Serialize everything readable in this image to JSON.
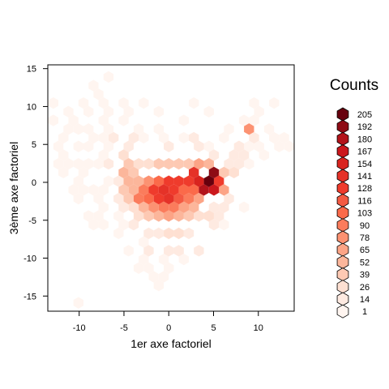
{
  "chart_data": {
    "type": "heatmap",
    "subtype": "hexbin",
    "title": "",
    "xlabel": "1er axe factoriel",
    "ylabel": "3ème axe factoriel",
    "xlim": [
      -13.5,
      14
    ],
    "ylim": [
      -17,
      15.5
    ],
    "x_ticks": [
      -10,
      -5,
      0,
      5,
      10
    ],
    "y_ticks": [
      -15,
      -10,
      -5,
      0,
      5,
      10,
      15
    ],
    "x_tick_labels": [
      "-10",
      "-5",
      "0",
      "5",
      "10"
    ],
    "y_tick_labels": [
      "-15",
      "-10",
      "-5",
      "0",
      "5",
      "10",
      "15"
    ],
    "grid": false,
    "legend": {
      "title": "Counts",
      "placement": "right",
      "entries": [
        "205",
        "192",
        "180",
        "167",
        "154",
        "141",
        "128",
        "116",
        "103",
        "90",
        "78",
        "65",
        "52",
        "39",
        "26",
        "14",
        "1"
      ],
      "colors": [
        "#67000d",
        "#8e0c15",
        "#b3141b",
        "#cb181d",
        "#d9241f",
        "#e53228",
        "#ef3b2c",
        "#f45a42",
        "#fb6a4a",
        "#fb7c5c",
        "#fc9272",
        "#fca486",
        "#fcb69b",
        "#fdc9b3",
        "#fee0d2",
        "#feeae1",
        "#fff5f0"
      ]
    },
    "hex_dx": 1.12,
    "x_origin": -12.32,
    "y_origin": -15.9,
    "cells": [
      [
        -12.5,
        2.0,
        2
      ],
      [
        -12.5,
        5.0,
        2
      ],
      [
        -12.5,
        8.0,
        2
      ],
      [
        -12.5,
        10.5,
        3
      ],
      [
        -11.5,
        4.0,
        3
      ],
      [
        -11.5,
        6.0,
        2
      ],
      [
        -11.5,
        9.0,
        3
      ],
      [
        -11.5,
        1.0,
        2
      ],
      [
        -11,
        3.0,
        4
      ],
      [
        -11,
        7.0,
        3
      ],
      [
        -11,
        -1.0,
        2
      ],
      [
        -10.5,
        5.0,
        4
      ],
      [
        -10.5,
        8.5,
        3
      ],
      [
        -10.5,
        0.5,
        3
      ],
      [
        -10,
        2.5,
        5
      ],
      [
        -10,
        6.5,
        4
      ],
      [
        -10,
        -2.5,
        3
      ],
      [
        -9.5,
        4.5,
        5
      ],
      [
        -9.5,
        10.0,
        3
      ],
      [
        -9.5,
        -4.0,
        2
      ],
      [
        -9,
        1.0,
        6
      ],
      [
        -9,
        7.5,
        5
      ],
      [
        -9,
        -1.5,
        4
      ],
      [
        -8.5,
        3.0,
        7
      ],
      [
        -8.5,
        5.5,
        6
      ],
      [
        -8.5,
        9.5,
        4
      ],
      [
        -8,
        11.5,
        5
      ],
      [
        -8,
        13.0,
        5
      ],
      [
        -7.5,
        12.0,
        6
      ],
      [
        -7.5,
        10.0,
        5
      ],
      [
        -7.5,
        8.0,
        6
      ],
      [
        -7,
        14.0,
        4
      ],
      [
        -8,
        -0.5,
        8
      ],
      [
        -8,
        -2.5,
        6
      ],
      [
        -8,
        -4.5,
        4
      ],
      [
        -7.5,
        2.0,
        9
      ],
      [
        -7.5,
        4.0,
        8
      ],
      [
        -7.5,
        6.0,
        7
      ],
      [
        -7,
        0.5,
        12
      ],
      [
        -7,
        -1.5,
        10
      ],
      [
        -7,
        -3.5,
        6
      ],
      [
        -7,
        -5.5,
        3
      ],
      [
        -6.5,
        2.5,
        14
      ],
      [
        -6.5,
        4.5,
        12
      ],
      [
        -6.5,
        7.0,
        9
      ],
      [
        -6.5,
        9.5,
        6
      ],
      [
        -6,
        0.0,
        18
      ],
      [
        -6,
        -2.0,
        14
      ],
      [
        -6,
        -4.0,
        9
      ],
      [
        -6,
        5.5,
        16
      ],
      [
        -5.5,
        1.5,
        22
      ],
      [
        -5.5,
        3.5,
        20
      ],
      [
        -5.5,
        -0.5,
        16
      ],
      [
        -5.5,
        -3.0,
        12
      ],
      [
        -5,
        2.5,
        26
      ],
      [
        -5,
        0.5,
        30
      ],
      [
        -5,
        5.0,
        14
      ],
      [
        -5,
        8.0,
        8
      ],
      [
        -4.5,
        1.5,
        52
      ],
      [
        -4.5,
        -1.0,
        40
      ],
      [
        -4.5,
        3.5,
        35
      ],
      [
        -4.5,
        -3.5,
        18
      ],
      [
        -4,
        0.0,
        60
      ],
      [
        -4,
        -2.0,
        45
      ],
      [
        -4,
        2.5,
        40
      ],
      [
        -4,
        5.5,
        20
      ],
      [
        -3.5,
        -1.0,
        58
      ],
      [
        -3.5,
        1.0,
        48
      ],
      [
        -3.5,
        -3.5,
        30
      ],
      [
        -3.5,
        -5.5,
        14
      ],
      [
        -3,
        -2.5,
        95
      ],
      [
        -3,
        0.0,
        60
      ],
      [
        -3,
        2.0,
        38
      ],
      [
        -3,
        -4.5,
        35
      ],
      [
        -2.5,
        -1.5,
        90
      ],
      [
        -2.5,
        0.5,
        70
      ],
      [
        -2.5,
        -3.5,
        60
      ],
      [
        -2.5,
        3.0,
        26
      ],
      [
        -2,
        -2.5,
        110
      ],
      [
        -2,
        0.0,
        82
      ],
      [
        -2,
        -4.5,
        45
      ],
      [
        -2,
        -6.5,
        18
      ],
      [
        -1.5,
        -1.5,
        130
      ],
      [
        -1.5,
        0.5,
        90
      ],
      [
        -1.5,
        -3.5,
        85
      ],
      [
        -1.5,
        2.5,
        40
      ],
      [
        -1,
        -2.5,
        140
      ],
      [
        -1,
        0.0,
        110
      ],
      [
        -1,
        -4.5,
        60
      ],
      [
        -1,
        -6.5,
        25
      ],
      [
        -0.5,
        -1.5,
        150
      ],
      [
        -0.5,
        0.5,
        120
      ],
      [
        -0.5,
        -3.5,
        100
      ],
      [
        -0.5,
        3.0,
        40
      ],
      [
        0,
        -2.5,
        145
      ],
      [
        0,
        0.0,
        135
      ],
      [
        0,
        -4.5,
        70
      ],
      [
        0,
        -7.0,
        30
      ],
      [
        0.5,
        -1.5,
        140
      ],
      [
        0.5,
        0.5,
        125
      ],
      [
        0.5,
        -3.5,
        90
      ],
      [
        0.5,
        2.5,
        45
      ],
      [
        1,
        -2.5,
        120
      ],
      [
        1,
        0.0,
        135
      ],
      [
        1,
        -4.5,
        55
      ],
      [
        1,
        -8.5,
        20
      ],
      [
        1.5,
        -1.5,
        115
      ],
      [
        1.5,
        0.5,
        118
      ],
      [
        1.5,
        -3.5,
        70
      ],
      [
        1.5,
        3.0,
        40
      ],
      [
        2,
        -2.5,
        95
      ],
      [
        2,
        0.0,
        125
      ],
      [
        2,
        -5.0,
        40
      ],
      [
        2.5,
        -1.5,
        105
      ],
      [
        2.5,
        0.5,
        135
      ],
      [
        2.5,
        2.5,
        45
      ],
      [
        3,
        -1.0,
        110
      ],
      [
        3,
        1.0,
        150
      ],
      [
        3,
        -3.0,
        55
      ],
      [
        3.5,
        0.0,
        160
      ],
      [
        3.5,
        -2.0,
        75
      ],
      [
        3.5,
        2.0,
        70
      ],
      [
        4,
        -1.0,
        180
      ],
      [
        4,
        0.5,
        205
      ],
      [
        4,
        2.5,
        55
      ],
      [
        4.5,
        0.0,
        200
      ],
      [
        4.5,
        -1.5,
        150
      ],
      [
        4.5,
        1.5,
        180
      ],
      [
        5,
        -0.5,
        170
      ],
      [
        5,
        1.0,
        195
      ],
      [
        5.5,
        0.0,
        140
      ],
      [
        5.5,
        -1.5,
        90
      ],
      [
        6,
        0.5,
        95
      ],
      [
        6,
        -1.0,
        65
      ],
      [
        6.5,
        1.0,
        45
      ],
      [
        6.5,
        -0.5,
        40
      ],
      [
        7,
        1.5,
        35
      ],
      [
        7,
        3.0,
        25
      ],
      [
        7.5,
        2.0,
        22
      ],
      [
        7.5,
        4.0,
        18
      ],
      [
        8,
        3.0,
        18
      ],
      [
        8,
        5.0,
        15
      ],
      [
        8.5,
        4.0,
        14
      ],
      [
        8.5,
        6.5,
        80
      ],
      [
        9,
        5.5,
        16
      ],
      [
        9,
        3.0,
        10
      ],
      [
        9.5,
        7.0,
        12
      ],
      [
        9.5,
        4.5,
        9
      ],
      [
        10,
        6.0,
        10
      ],
      [
        10,
        8.0,
        8
      ],
      [
        10.5,
        5.0,
        8
      ],
      [
        10.5,
        9.5,
        6
      ],
      [
        11,
        7.0,
        7
      ],
      [
        11,
        4.0,
        5
      ],
      [
        11.5,
        6.0,
        5
      ],
      [
        12,
        5.0,
        4
      ],
      [
        12.5,
        5.5,
        3
      ],
      [
        13,
        5.0,
        2
      ],
      [
        11.5,
        10.0,
        3
      ],
      [
        10,
        10.5,
        4
      ],
      [
        8,
        8.0,
        6
      ],
      [
        7,
        6.5,
        8
      ],
      [
        6,
        5.5,
        10
      ],
      [
        5.5,
        4.0,
        14
      ],
      [
        4.5,
        5.0,
        12
      ],
      [
        3.5,
        4.5,
        16
      ],
      [
        2.5,
        5.5,
        14
      ],
      [
        1.5,
        6.0,
        10
      ],
      [
        0.5,
        5.0,
        14
      ],
      [
        -0.5,
        6.0,
        10
      ],
      [
        -1.5,
        6.5,
        8
      ],
      [
        -2.5,
        6.0,
        10
      ],
      [
        -3.5,
        7.5,
        8
      ],
      [
        -4.5,
        9.0,
        6
      ],
      [
        -5.5,
        10.5,
        5
      ],
      [
        3,
        11.0,
        3
      ],
      [
        5,
        9.0,
        4
      ],
      [
        2,
        8.5,
        5
      ],
      [
        -1,
        9.0,
        4
      ],
      [
        -3,
        11.0,
        3
      ],
      [
        8.5,
        -3.0,
        8
      ],
      [
        7,
        -2.5,
        15
      ],
      [
        6,
        -3.0,
        20
      ],
      [
        5,
        -3.5,
        25
      ],
      [
        4,
        -4.0,
        28
      ],
      [
        3,
        -5.0,
        30
      ],
      [
        2,
        -7.0,
        20
      ],
      [
        1,
        -6.5,
        35
      ],
      [
        0,
        -9.0,
        18
      ],
      [
        -0.5,
        -10.5,
        10
      ],
      [
        -2,
        -9.0,
        14
      ],
      [
        -3,
        -8.0,
        12
      ],
      [
        -2.5,
        -11.0,
        8
      ],
      [
        -1.5,
        -12.5,
        5
      ],
      [
        0.5,
        -11.0,
        12
      ],
      [
        2,
        -10.0,
        10
      ],
      [
        3,
        -8.5,
        14
      ],
      [
        4.5,
        -6.0,
        18
      ],
      [
        5.5,
        -5.0,
        14
      ],
      [
        6.5,
        -5.5,
        10
      ],
      [
        -5,
        -6.0,
        10
      ],
      [
        -6,
        -7.0,
        6
      ],
      [
        -4,
        -9.5,
        6
      ],
      [
        -8.5,
        -6.0,
        3
      ],
      [
        -3,
        -10.5,
        6
      ],
      [
        -3.5,
        -11.5,
        4
      ],
      [
        -1,
        -14.0,
        3
      ],
      [
        -0.5,
        -12.0,
        6
      ],
      [
        -10,
        -15.5,
        2
      ]
    ]
  }
}
